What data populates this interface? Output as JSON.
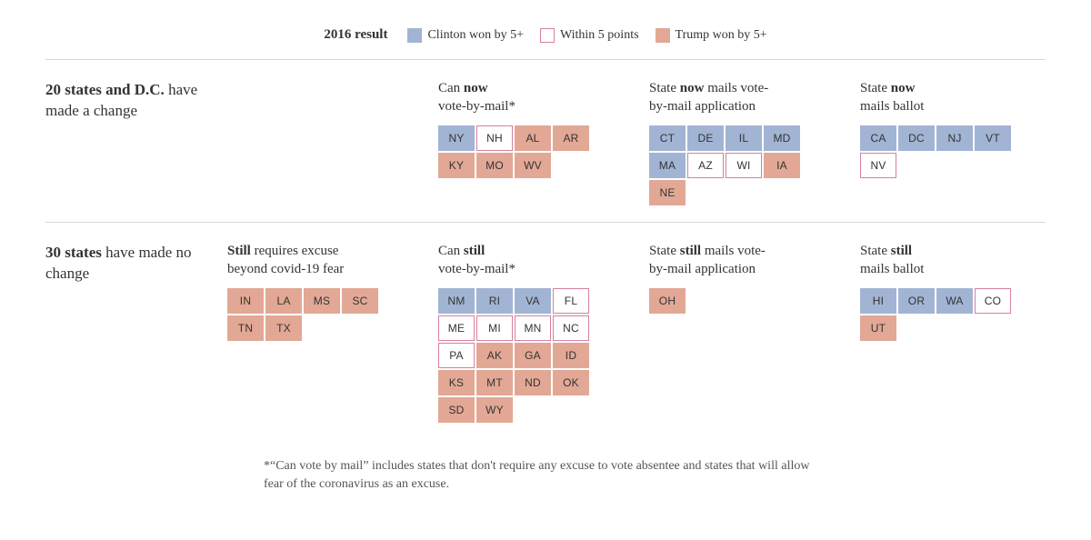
{
  "colors": {
    "clinton": {
      "fill": "#a2b4d3",
      "border": "#a2b4d3",
      "text": "#333333"
    },
    "within5": {
      "fill": "#ffffff",
      "border": "#d77fa1",
      "text": "#333333"
    },
    "trump": {
      "fill": "#e2a895",
      "border": "#e2a895",
      "text": "#333333"
    },
    "divider": "#d9d9d9",
    "body_text": "#333333",
    "footnote_text": "#555555"
  },
  "legend": {
    "title": "2016 result",
    "items": [
      {
        "label": "Clinton won by 5+",
        "style": "clinton"
      },
      {
        "label": "Within 5 points",
        "style": "within5"
      },
      {
        "label": "Trump won by 5+",
        "style": "trump"
      }
    ]
  },
  "sections": [
    {
      "label_html": "<span class=\"bold\">20 states and D.C.</span> have made a change",
      "groups": [
        {
          "title_html": "",
          "states": []
        },
        {
          "title_html": "Can <span class=\"bold\">now</span><br>vote-by-mail*",
          "states": [
            {
              "abbr": "NY",
              "style": "clinton"
            },
            {
              "abbr": "NH",
              "style": "within5"
            },
            {
              "abbr": "AL",
              "style": "trump"
            },
            {
              "abbr": "AR",
              "style": "trump"
            },
            {
              "abbr": "KY",
              "style": "trump"
            },
            {
              "abbr": "MO",
              "style": "trump"
            },
            {
              "abbr": "WV",
              "style": "trump"
            }
          ]
        },
        {
          "title_html": "State <span class=\"bold\">now</span> mails vote-<br>by-mail application",
          "states": [
            {
              "abbr": "CT",
              "style": "clinton"
            },
            {
              "abbr": "DE",
              "style": "clinton"
            },
            {
              "abbr": "IL",
              "style": "clinton"
            },
            {
              "abbr": "MD",
              "style": "clinton"
            },
            {
              "abbr": "MA",
              "style": "clinton"
            },
            {
              "abbr": "AZ",
              "style": "within5"
            },
            {
              "abbr": "WI",
              "style": "within5"
            },
            {
              "abbr": "IA",
              "style": "trump"
            },
            {
              "abbr": "NE",
              "style": "trump"
            }
          ]
        },
        {
          "title_html": "State <span class=\"bold\">now</span><br>mails ballot",
          "states": [
            {
              "abbr": "CA",
              "style": "clinton"
            },
            {
              "abbr": "DC",
              "style": "clinton"
            },
            {
              "abbr": "NJ",
              "style": "clinton"
            },
            {
              "abbr": "VT",
              "style": "clinton"
            },
            {
              "abbr": "NV",
              "style": "within5"
            }
          ]
        }
      ]
    },
    {
      "label_html": "<span class=\"bold\">30 states</span> have made no change",
      "groups": [
        {
          "title_html": "<span class=\"bold\">Still</span> requires excuse<br>beyond covid-19 fear",
          "states": [
            {
              "abbr": "IN",
              "style": "trump"
            },
            {
              "abbr": "LA",
              "style": "trump"
            },
            {
              "abbr": "MS",
              "style": "trump"
            },
            {
              "abbr": "SC",
              "style": "trump"
            },
            {
              "abbr": "TN",
              "style": "trump"
            },
            {
              "abbr": "TX",
              "style": "trump"
            }
          ]
        },
        {
          "title_html": "Can <span class=\"bold\">still</span><br>vote-by-mail*",
          "states": [
            {
              "abbr": "NM",
              "style": "clinton"
            },
            {
              "abbr": "RI",
              "style": "clinton"
            },
            {
              "abbr": "VA",
              "style": "clinton"
            },
            {
              "abbr": "FL",
              "style": "within5"
            },
            {
              "abbr": "ME",
              "style": "within5"
            },
            {
              "abbr": "MI",
              "style": "within5"
            },
            {
              "abbr": "MN",
              "style": "within5"
            },
            {
              "abbr": "NC",
              "style": "within5"
            },
            {
              "abbr": "PA",
              "style": "within5"
            },
            {
              "abbr": "AK",
              "style": "trump"
            },
            {
              "abbr": "GA",
              "style": "trump"
            },
            {
              "abbr": "ID",
              "style": "trump"
            },
            {
              "abbr": "KS",
              "style": "trump"
            },
            {
              "abbr": "MT",
              "style": "trump"
            },
            {
              "abbr": "ND",
              "style": "trump"
            },
            {
              "abbr": "OK",
              "style": "trump"
            },
            {
              "abbr": "SD",
              "style": "trump"
            },
            {
              "abbr": "WY",
              "style": "trump"
            }
          ]
        },
        {
          "title_html": "State <span class=\"bold\">still</span> mails vote-<br>by-mail application",
          "states": [
            {
              "abbr": "OH",
              "style": "trump"
            }
          ]
        },
        {
          "title_html": "State <span class=\"bold\">still</span><br>mails ballot",
          "states": [
            {
              "abbr": "HI",
              "style": "clinton"
            },
            {
              "abbr": "OR",
              "style": "clinton"
            },
            {
              "abbr": "WA",
              "style": "clinton"
            },
            {
              "abbr": "CO",
              "style": "within5"
            },
            {
              "abbr": "UT",
              "style": "trump"
            }
          ]
        }
      ]
    }
  ],
  "footnote": "*“Can vote by mail” includes states that don't require any excuse to vote absentee and states that will allow fear of the coronavirus as an excuse."
}
